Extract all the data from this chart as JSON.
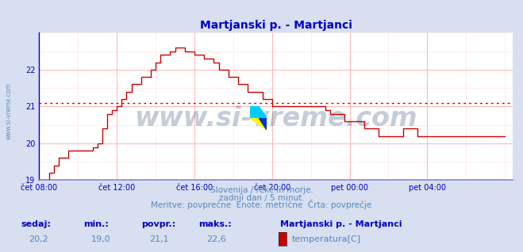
{
  "title": "Martjanski p. - Martjanci",
  "title_color": "#0000cc",
  "bg_color": "#d8dff0",
  "plot_bg_color": "#ffffff",
  "grid_color_major": "#ffaaaa",
  "grid_color_minor": "#ffdddd",
  "line_color": "#cc0000",
  "avg_line_color": "#cc0000",
  "avg_value": 21.1,
  "ylim": [
    19.0,
    23.0
  ],
  "yticks": [
    19,
    20,
    21,
    22
  ],
  "xlim": [
    8,
    32.4
  ],
  "xticks": [
    8,
    12,
    16,
    20,
    24,
    28
  ],
  "xtick_labels": [
    "čet 08:00",
    "čet 12:00",
    "čet 16:00",
    "čet 20:00",
    "pet 00:00",
    "pet 04:00"
  ],
  "watermark_text": "www.si-vreme.com",
  "watermark_color": "#1a3a6a",
  "watermark_alpha": 0.25,
  "watermark_fontsize": 24,
  "subtitle1": "Slovenija / reke in morje.",
  "subtitle2": "zadnji dan / 5 minut.",
  "subtitle3": "Meritve: povprečne  Enote: metrične  Črta: povprečje",
  "subtitle_color": "#5588bb",
  "leg_labels": [
    "sedaj:",
    "min.:",
    "povpr.:",
    "maks.:"
  ],
  "leg_vals": [
    "20,2",
    "19,0",
    "21,1",
    "22,6"
  ],
  "leg_label_color": "#0000cc",
  "leg_val_color": "#5588bb",
  "legend_station": "Martjanski p. - Martjanci",
  "legend_series": "temperatura[C]",
  "sidebar_text": "www.si-vreme.com",
  "sidebar_color": "#5588bb",
  "axis_color": "#0000cc",
  "spine_bottom_color": "#8888cc",
  "arrow_color": "#cc0000",
  "icon_colors": [
    "#00ccff",
    "#ffff00",
    "#0033cc"
  ],
  "temp_data_x": [
    8.0,
    8.08,
    8.25,
    8.5,
    8.75,
    9.0,
    9.25,
    9.5,
    9.75,
    10.0,
    10.25,
    10.5,
    10.75,
    11.0,
    11.25,
    11.5,
    11.75,
    12.0,
    12.25,
    12.5,
    12.75,
    13.0,
    13.25,
    13.5,
    13.75,
    14.0,
    14.25,
    14.5,
    14.75,
    15.0,
    15.25,
    15.5,
    15.75,
    16.0,
    16.25,
    16.5,
    16.75,
    17.0,
    17.25,
    17.5,
    17.75,
    18.0,
    18.25,
    18.5,
    18.75,
    19.0,
    19.25,
    19.5,
    19.75,
    20.0,
    20.25,
    20.5,
    20.75,
    21.0,
    21.25,
    21.5,
    21.75,
    22.0,
    22.25,
    22.5,
    22.75,
    23.0,
    23.25,
    23.5,
    23.75,
    24.0,
    24.25,
    24.5,
    24.75,
    25.0,
    25.25,
    25.5,
    25.75,
    26.0,
    26.25,
    26.5,
    26.75,
    27.0,
    27.25,
    27.5,
    27.75,
    28.0,
    28.25,
    28.5,
    28.75,
    29.0,
    29.25,
    29.5,
    29.75,
    30.0,
    30.25,
    30.5,
    30.75,
    31.0,
    31.25,
    31.5,
    31.75,
    32.0
  ],
  "temp_data_y": [
    19.0,
    19.0,
    19.0,
    19.2,
    19.4,
    19.6,
    19.6,
    19.8,
    19.8,
    19.8,
    19.8,
    19.8,
    19.9,
    20.0,
    20.4,
    20.8,
    20.9,
    21.0,
    21.2,
    21.4,
    21.6,
    21.6,
    21.8,
    21.8,
    22.0,
    22.2,
    22.4,
    22.4,
    22.5,
    22.6,
    22.6,
    22.5,
    22.5,
    22.4,
    22.4,
    22.3,
    22.3,
    22.2,
    22.0,
    22.0,
    21.8,
    21.8,
    21.6,
    21.6,
    21.4,
    21.4,
    21.4,
    21.2,
    21.2,
    21.0,
    21.0,
    21.0,
    21.0,
    21.0,
    21.0,
    21.0,
    21.0,
    21.0,
    21.0,
    21.0,
    20.9,
    20.8,
    20.8,
    20.8,
    20.6,
    20.6,
    20.6,
    20.6,
    20.4,
    20.4,
    20.4,
    20.2,
    20.2,
    20.2,
    20.2,
    20.2,
    20.4,
    20.4,
    20.4,
    20.2,
    20.2,
    20.2,
    20.2,
    20.2,
    20.2,
    20.2,
    20.2,
    20.2,
    20.2,
    20.2,
    20.2,
    20.2,
    20.2,
    20.2,
    20.2,
    20.2,
    20.2,
    20.2
  ]
}
